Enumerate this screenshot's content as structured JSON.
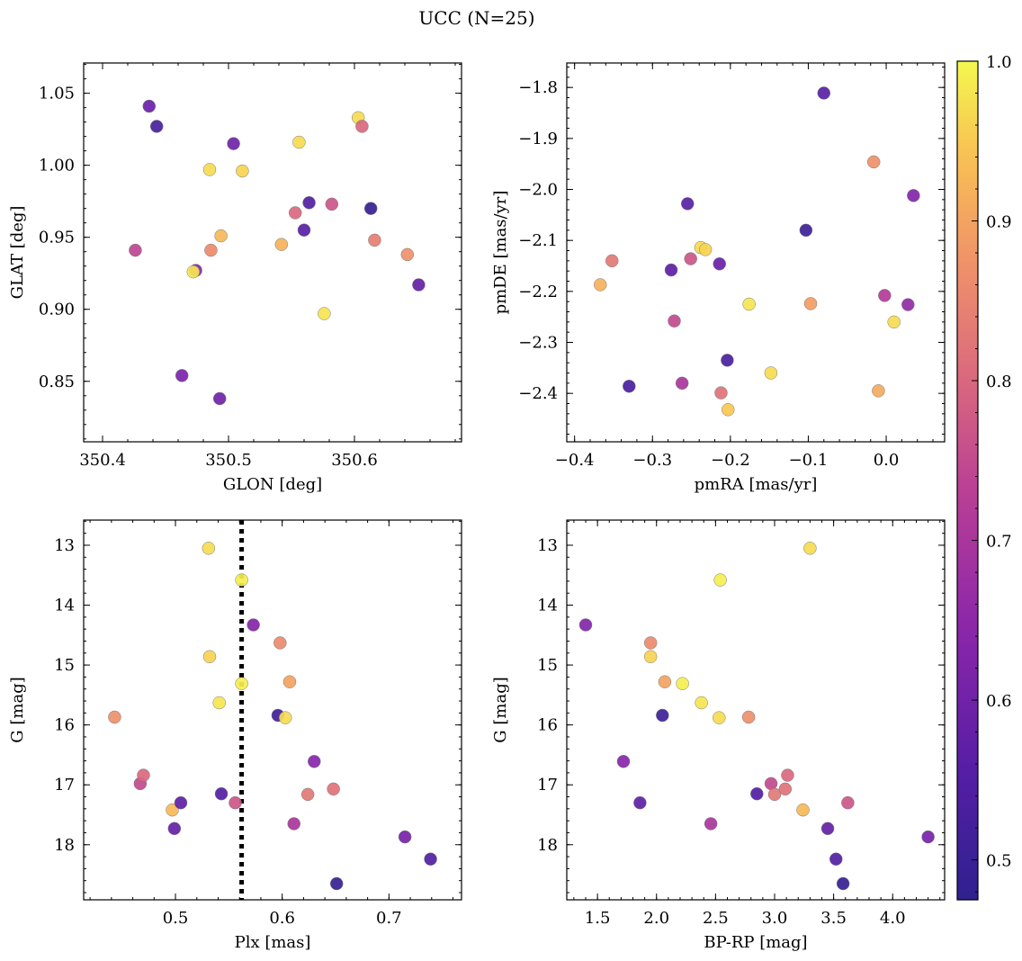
{
  "figure": {
    "title": "UCC (N=25)"
  },
  "colorbar": {
    "range": [
      0.475,
      1.0
    ],
    "ticks": [
      0.5,
      0.6,
      0.7,
      0.8,
      0.9,
      1.0
    ],
    "tick_labels": [
      "0.5",
      "0.6",
      "0.7",
      "0.8",
      "0.9",
      "1.0"
    ],
    "colormap": "plasma"
  },
  "chart_data": [
    {
      "type": "scatter",
      "id": "glon-glat",
      "xlabel": "GLON [deg]",
      "ylabel": "GLAT [deg]",
      "xlim": [
        350.385,
        350.685
      ],
      "ylim": [
        0.808,
        1.071
      ],
      "yinvert": false,
      "xticks": [
        350.4,
        350.5,
        350.6
      ],
      "xtick_labels": [
        "350.4",
        "350.5",
        "350.6"
      ],
      "yticks": [
        0.85,
        0.9,
        0.95,
        1.0,
        1.05
      ],
      "ytick_labels": [
        "0.85",
        "0.90",
        "0.95",
        "1.00",
        "1.05"
      ],
      "points": [
        {
          "x": 350.437,
          "y": 1.041,
          "c": 0.59
        },
        {
          "x": 350.443,
          "y": 1.027,
          "c": 0.53
        },
        {
          "x": 350.426,
          "y": 0.941,
          "c": 0.74
        },
        {
          "x": 350.463,
          "y": 0.854,
          "c": 0.62
        },
        {
          "x": 350.474,
          "y": 0.927,
          "c": 0.64
        },
        {
          "x": 350.472,
          "y": 0.926,
          "c": 0.98
        },
        {
          "x": 350.485,
          "y": 0.997,
          "c": 0.97
        },
        {
          "x": 350.486,
          "y": 0.941,
          "c": 0.86
        },
        {
          "x": 350.493,
          "y": 0.838,
          "c": 0.6
        },
        {
          "x": 350.494,
          "y": 0.951,
          "c": 0.93
        },
        {
          "x": 350.504,
          "y": 1.015,
          "c": 0.6
        },
        {
          "x": 350.511,
          "y": 0.996,
          "c": 0.96
        },
        {
          "x": 350.542,
          "y": 0.945,
          "c": 0.92
        },
        {
          "x": 350.553,
          "y": 0.967,
          "c": 0.8
        },
        {
          "x": 350.556,
          "y": 1.016,
          "c": 0.97
        },
        {
          "x": 350.56,
          "y": 0.955,
          "c": 0.56
        },
        {
          "x": 350.564,
          "y": 0.974,
          "c": 0.55
        },
        {
          "x": 350.576,
          "y": 0.897,
          "c": 0.98
        },
        {
          "x": 350.582,
          "y": 0.973,
          "c": 0.77
        },
        {
          "x": 350.603,
          "y": 1.033,
          "c": 0.97
        },
        {
          "x": 350.606,
          "y": 1.027,
          "c": 0.8
        },
        {
          "x": 350.613,
          "y": 0.97,
          "c": 0.49
        },
        {
          "x": 350.616,
          "y": 0.948,
          "c": 0.84
        },
        {
          "x": 350.642,
          "y": 0.938,
          "c": 0.87
        },
        {
          "x": 350.651,
          "y": 0.917,
          "c": 0.58
        }
      ]
    },
    {
      "type": "scatter",
      "id": "pmra-pmde",
      "xlabel": "pmRA [mas/yr]",
      "ylabel": "pmDE [mas/yr]",
      "xlim": [
        -0.41,
        0.075
      ],
      "ylim": [
        -2.495,
        -1.752
      ],
      "yinvert": false,
      "xticks": [
        -0.4,
        -0.3,
        -0.2,
        -0.1,
        0.0
      ],
      "xtick_labels": [
        "−0.4",
        "−0.3",
        "−0.2",
        "−0.1",
        "0.0"
      ],
      "yticks": [
        -2.4,
        -2.3,
        -2.2,
        -2.1,
        -2.0,
        -1.9,
        -1.8
      ],
      "ytick_labels": [
        "−2.4",
        "−2.3",
        "−2.2",
        "−2.1",
        "−2.0",
        "−1.9",
        "−1.8"
      ],
      "points": [
        {
          "x": -0.367,
          "y": -2.187,
          "c": 0.92
        },
        {
          "x": -0.352,
          "y": -2.14,
          "c": 0.83
        },
        {
          "x": -0.33,
          "y": -2.386,
          "c": 0.53
        },
        {
          "x": -0.276,
          "y": -2.158,
          "c": 0.57
        },
        {
          "x": -0.272,
          "y": -2.258,
          "c": 0.75
        },
        {
          "x": -0.262,
          "y": -2.38,
          "c": 0.7
        },
        {
          "x": -0.255,
          "y": -2.028,
          "c": 0.56
        },
        {
          "x": -0.251,
          "y": -2.136,
          "c": 0.77
        },
        {
          "x": -0.238,
          "y": -2.114,
          "c": 0.97
        },
        {
          "x": -0.232,
          "y": -2.118,
          "c": 0.96
        },
        {
          "x": -0.214,
          "y": -2.146,
          "c": 0.59
        },
        {
          "x": -0.212,
          "y": -2.399,
          "c": 0.82
        },
        {
          "x": -0.204,
          "y": -2.335,
          "c": 0.53
        },
        {
          "x": -0.203,
          "y": -2.432,
          "c": 0.95
        },
        {
          "x": -0.176,
          "y": -2.225,
          "c": 0.98
        },
        {
          "x": -0.148,
          "y": -2.36,
          "c": 0.97
        },
        {
          "x": -0.103,
          "y": -2.08,
          "c": 0.51
        },
        {
          "x": -0.097,
          "y": -2.224,
          "c": 0.89
        },
        {
          "x": -0.08,
          "y": -1.811,
          "c": 0.56
        },
        {
          "x": -0.016,
          "y": -1.946,
          "c": 0.87
        },
        {
          "x": -0.01,
          "y": -2.395,
          "c": 0.91
        },
        {
          "x": -0.002,
          "y": -2.208,
          "c": 0.72
        },
        {
          "x": 0.01,
          "y": -2.26,
          "c": 0.97
        },
        {
          "x": 0.028,
          "y": -2.226,
          "c": 0.66
        },
        {
          "x": 0.035,
          "y": -2.012,
          "c": 0.63
        }
      ]
    },
    {
      "type": "scatter",
      "id": "plx-g",
      "xlabel": "Plx [mas]",
      "ylabel": "G [mag]",
      "xlim": [
        0.414,
        0.768
      ],
      "ylim": [
        12.58,
        18.92
      ],
      "yinvert": true,
      "vline": {
        "x": 0.562,
        "style": "dotted"
      },
      "xticks": [
        0.5,
        0.6,
        0.7
      ],
      "xtick_labels": [
        "0.5",
        "0.6",
        "0.7"
      ],
      "yticks": [
        13,
        14,
        15,
        16,
        17,
        18
      ],
      "ytick_labels": [
        "13",
        "14",
        "15",
        "16",
        "17",
        "18"
      ],
      "points": [
        {
          "x": 0.443,
          "y": 15.87,
          "c": 0.87
        },
        {
          "x": 0.467,
          "y": 16.98,
          "c": 0.75
        },
        {
          "x": 0.47,
          "y": 16.84,
          "c": 0.8
        },
        {
          "x": 0.497,
          "y": 17.42,
          "c": 0.93
        },
        {
          "x": 0.499,
          "y": 17.73,
          "c": 0.58
        },
        {
          "x": 0.505,
          "y": 17.3,
          "c": 0.57
        },
        {
          "x": 0.531,
          "y": 13.05,
          "c": 0.97
        },
        {
          "x": 0.532,
          "y": 14.86,
          "c": 0.96
        },
        {
          "x": 0.541,
          "y": 15.63,
          "c": 0.98
        },
        {
          "x": 0.543,
          "y": 17.15,
          "c": 0.55
        },
        {
          "x": 0.556,
          "y": 17.3,
          "c": 0.77
        },
        {
          "x": 0.562,
          "y": 13.58,
          "c": 0.99
        },
        {
          "x": 0.562,
          "y": 15.31,
          "c": 0.99
        },
        {
          "x": 0.573,
          "y": 14.33,
          "c": 0.63
        },
        {
          "x": 0.596,
          "y": 15.84,
          "c": 0.51
        },
        {
          "x": 0.598,
          "y": 14.63,
          "c": 0.86
        },
        {
          "x": 0.603,
          "y": 15.88,
          "c": 0.97
        },
        {
          "x": 0.607,
          "y": 15.28,
          "c": 0.9
        },
        {
          "x": 0.611,
          "y": 17.65,
          "c": 0.7
        },
        {
          "x": 0.624,
          "y": 17.16,
          "c": 0.83
        },
        {
          "x": 0.63,
          "y": 16.61,
          "c": 0.64
        },
        {
          "x": 0.648,
          "y": 17.07,
          "c": 0.82
        },
        {
          "x": 0.651,
          "y": 18.65,
          "c": 0.49
        },
        {
          "x": 0.715,
          "y": 17.87,
          "c": 0.61
        },
        {
          "x": 0.739,
          "y": 18.24,
          "c": 0.55
        }
      ]
    },
    {
      "type": "scatter",
      "id": "bprp-g",
      "xlabel": "BP-RP [mag]",
      "ylabel": "G [mag]",
      "xlim": [
        1.24,
        4.44
      ],
      "ylim": [
        12.58,
        18.92
      ],
      "yinvert": true,
      "xticks": [
        1.5,
        2.0,
        2.5,
        3.0,
        3.5,
        4.0
      ],
      "xtick_labels": [
        "1.5",
        "2.0",
        "2.5",
        "3.0",
        "3.5",
        "4.0"
      ],
      "yticks": [
        13,
        14,
        15,
        16,
        17,
        18
      ],
      "ytick_labels": [
        "13",
        "14",
        "15",
        "16",
        "17",
        "18"
      ],
      "points": [
        {
          "x": 1.4,
          "y": 14.33,
          "c": 0.63
        },
        {
          "x": 1.72,
          "y": 16.61,
          "c": 0.64
        },
        {
          "x": 1.86,
          "y": 17.3,
          "c": 0.57
        },
        {
          "x": 1.95,
          "y": 14.63,
          "c": 0.86
        },
        {
          "x": 1.95,
          "y": 14.86,
          "c": 0.96
        },
        {
          "x": 2.05,
          "y": 15.84,
          "c": 0.51
        },
        {
          "x": 2.07,
          "y": 15.28,
          "c": 0.9
        },
        {
          "x": 2.22,
          "y": 15.31,
          "c": 0.99
        },
        {
          "x": 2.38,
          "y": 15.63,
          "c": 0.98
        },
        {
          "x": 2.46,
          "y": 17.65,
          "c": 0.7
        },
        {
          "x": 2.53,
          "y": 15.88,
          "c": 0.97
        },
        {
          "x": 2.54,
          "y": 13.58,
          "c": 0.99
        },
        {
          "x": 2.78,
          "y": 15.87,
          "c": 0.87
        },
        {
          "x": 2.85,
          "y": 17.15,
          "c": 0.55
        },
        {
          "x": 2.97,
          "y": 16.98,
          "c": 0.75
        },
        {
          "x": 3.0,
          "y": 17.16,
          "c": 0.83
        },
        {
          "x": 3.09,
          "y": 17.07,
          "c": 0.82
        },
        {
          "x": 3.11,
          "y": 16.84,
          "c": 0.8
        },
        {
          "x": 3.24,
          "y": 17.42,
          "c": 0.93
        },
        {
          "x": 3.3,
          "y": 13.05,
          "c": 0.97
        },
        {
          "x": 3.45,
          "y": 17.73,
          "c": 0.58
        },
        {
          "x": 3.52,
          "y": 18.24,
          "c": 0.55
        },
        {
          "x": 3.58,
          "y": 18.65,
          "c": 0.49
        },
        {
          "x": 3.62,
          "y": 17.3,
          "c": 0.77
        },
        {
          "x": 4.3,
          "y": 17.87,
          "c": 0.61
        }
      ]
    }
  ]
}
